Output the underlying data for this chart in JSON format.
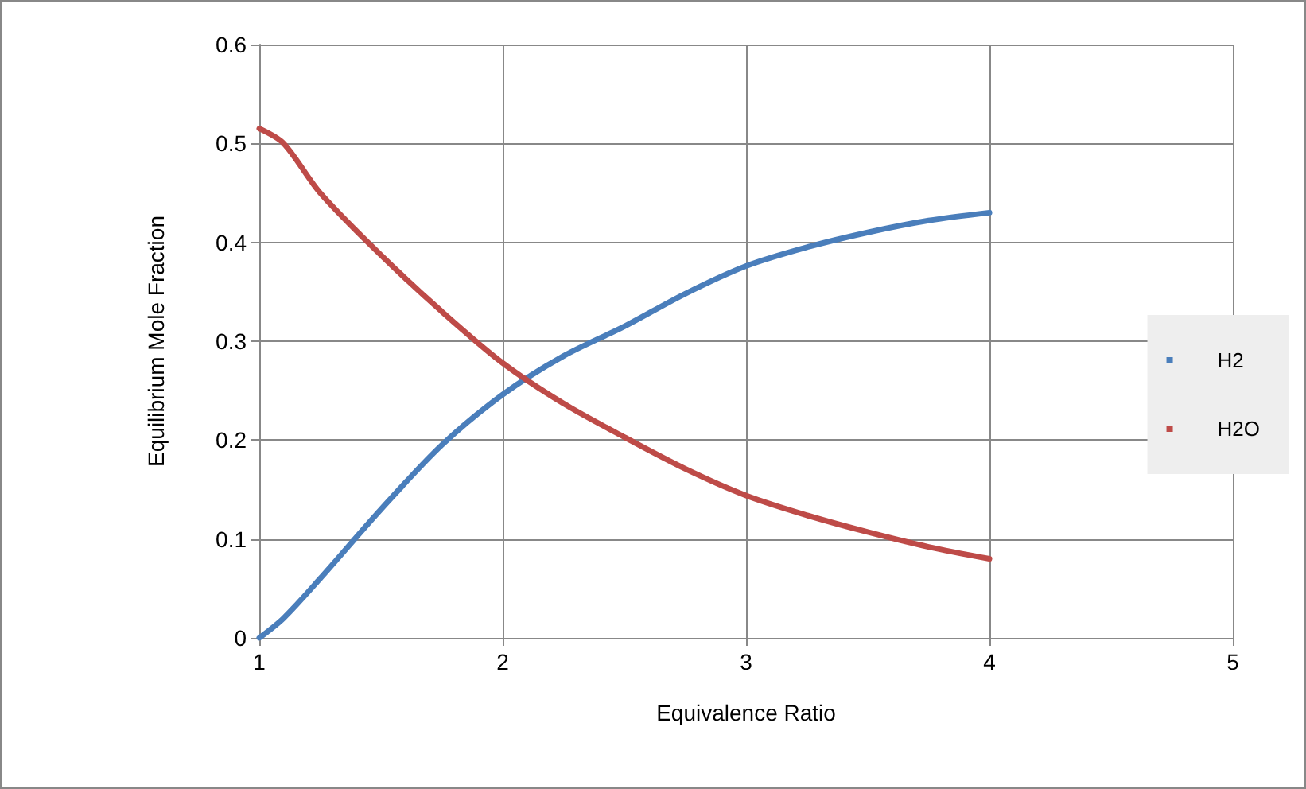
{
  "chart_data": {
    "type": "line",
    "xlabel": "Equivalence Ratio",
    "ylabel": "Equilibrium Mole Fraction",
    "x": [
      1,
      1.1,
      1.25,
      1.5,
      1.75,
      2,
      2.25,
      2.5,
      2.75,
      3,
      3.25,
      3.5,
      3.75,
      4
    ],
    "series": [
      {
        "name": "H2",
        "color": "#4a7ebb",
        "values": [
          0,
          0.02,
          0.06,
          0.13,
          0.195,
          0.246,
          0.285,
          0.315,
          0.348,
          0.376,
          0.395,
          0.41,
          0.422,
          0.43
        ]
      },
      {
        "name": "H2O",
        "color": "#be4b48",
        "values": [
          0.515,
          0.5,
          0.45,
          0.387,
          0.33,
          0.278,
          0.237,
          0.203,
          0.171,
          0.144,
          0.124,
          0.107,
          0.092,
          0.08
        ]
      }
    ],
    "xlim": [
      1,
      5
    ],
    "xticks": [
      1,
      2,
      3,
      4,
      5
    ],
    "ylim": [
      0,
      0.6
    ],
    "yticks": [
      0,
      0.1,
      0.2,
      0.3,
      0.4,
      0.5,
      0.6
    ],
    "grid": true,
    "legend": "right",
    "marker": "none",
    "line_style": "solid"
  }
}
